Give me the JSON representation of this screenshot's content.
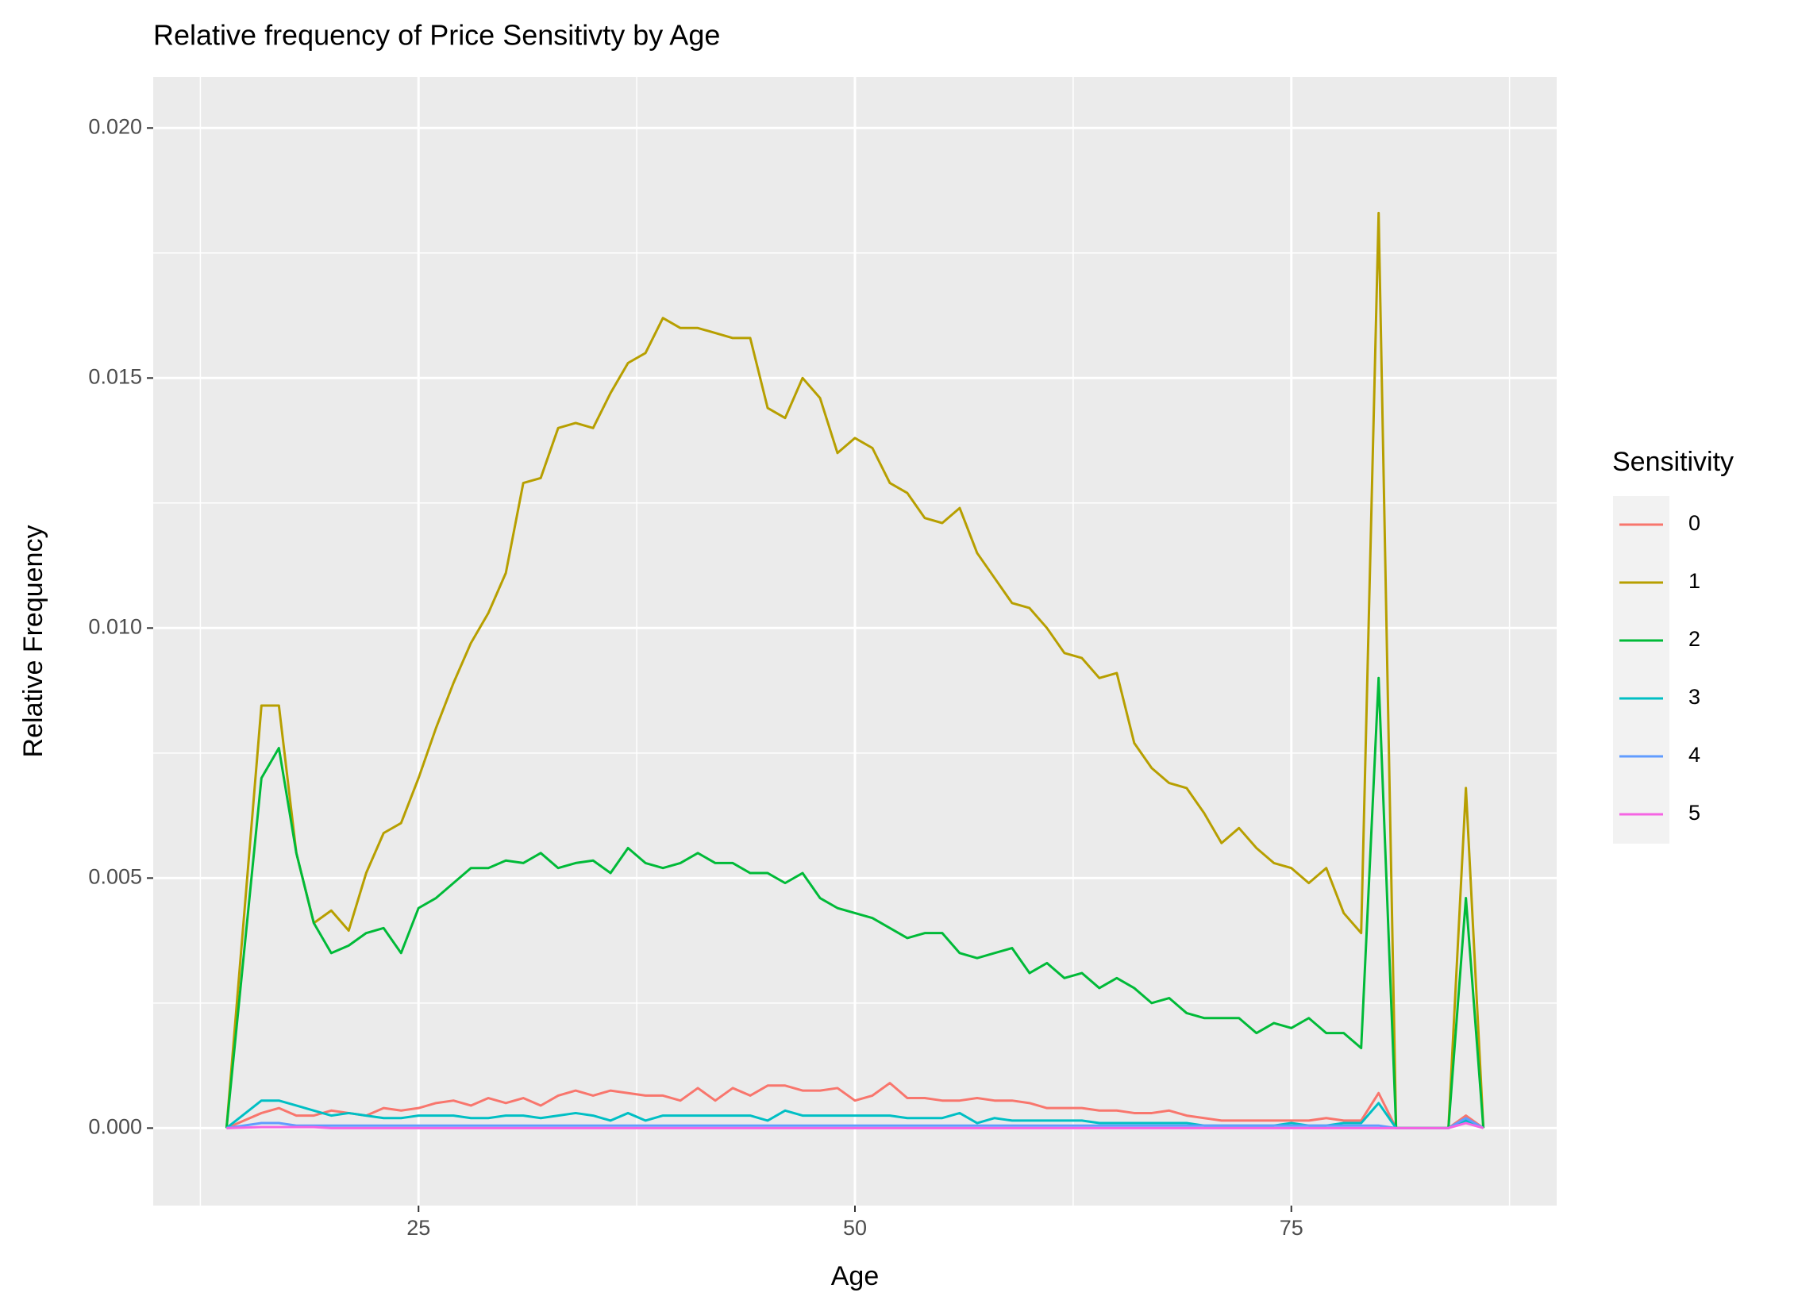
{
  "chart_data": {
    "type": "line",
    "title": "Relative frequency of Price Sensitivty by Age",
    "x_label": "Age",
    "y_label": "Relative Frequency",
    "legend_title": "Sensitivity",
    "x": [
      14,
      16,
      17,
      18,
      19,
      20,
      21,
      22,
      23,
      24,
      25,
      26,
      27,
      28,
      29,
      30,
      31,
      32,
      33,
      34,
      35,
      36,
      37,
      38,
      39,
      40,
      41,
      42,
      43,
      44,
      45,
      46,
      47,
      48,
      49,
      50,
      51,
      52,
      53,
      54,
      55,
      56,
      57,
      58,
      59,
      60,
      61,
      62,
      63,
      64,
      65,
      66,
      67,
      68,
      69,
      70,
      71,
      72,
      73,
      74,
      75,
      76,
      77,
      78,
      79,
      80,
      81,
      82,
      83,
      84,
      85,
      86
    ],
    "series": [
      {
        "name": "0",
        "color": "#F8766D",
        "values": [
          0,
          0.0003,
          0.0004,
          0.00025,
          0.00025,
          0.00035,
          0.0003,
          0.00025,
          0.0004,
          0.00035,
          0.0004,
          0.0005,
          0.00055,
          0.00045,
          0.0006,
          0.0005,
          0.0006,
          0.00045,
          0.00065,
          0.00075,
          0.00065,
          0.00075,
          0.0007,
          0.00065,
          0.00065,
          0.00055,
          0.0008,
          0.00055,
          0.0008,
          0.00065,
          0.00085,
          0.00085,
          0.00075,
          0.00075,
          0.0008,
          0.00055,
          0.00065,
          0.0009,
          0.0006,
          0.0006,
          0.00055,
          0.00055,
          0.0006,
          0.00055,
          0.00055,
          0.0005,
          0.0004,
          0.0004,
          0.0004,
          0.00035,
          0.00035,
          0.0003,
          0.0003,
          0.00035,
          0.00025,
          0.0002,
          0.00015,
          0.00015,
          0.00015,
          0.00015,
          0.00015,
          0.00015,
          0.0002,
          0.00015,
          0.00015,
          0.0007,
          0,
          0,
          0,
          0,
          0.00025,
          0
        ]
      },
      {
        "name": "1",
        "color": "#B79F00",
        "values": [
          0,
          0.00845,
          0.00845,
          0.0055,
          0.0041,
          0.00435,
          0.00395,
          0.0051,
          0.0059,
          0.0061,
          0.007,
          0.008,
          0.0089,
          0.0097,
          0.0103,
          0.0111,
          0.0129,
          0.013,
          0.014,
          0.0141,
          0.014,
          0.0147,
          0.0153,
          0.0155,
          0.0162,
          0.016,
          0.016,
          0.0159,
          0.0158,
          0.0158,
          0.0144,
          0.0142,
          0.015,
          0.0146,
          0.0135,
          0.0138,
          0.0136,
          0.0129,
          0.0127,
          0.0122,
          0.0121,
          0.0124,
          0.0115,
          0.011,
          0.0105,
          0.0104,
          0.01,
          0.0095,
          0.0094,
          0.009,
          0.0091,
          0.0077,
          0.0072,
          0.0069,
          0.0068,
          0.0063,
          0.0057,
          0.006,
          0.0056,
          0.0053,
          0.0052,
          0.0049,
          0.0052,
          0.0043,
          0.0039,
          0.0183,
          0,
          0,
          0,
          0,
          0.0068,
          0
        ]
      },
      {
        "name": "2",
        "color": "#00BA38",
        "values": [
          0,
          0.007,
          0.0076,
          0.0055,
          0.0041,
          0.0035,
          0.00365,
          0.0039,
          0.004,
          0.0035,
          0.0044,
          0.0046,
          0.0049,
          0.0052,
          0.0052,
          0.00535,
          0.0053,
          0.0055,
          0.0052,
          0.0053,
          0.00535,
          0.0051,
          0.0056,
          0.0053,
          0.0052,
          0.0053,
          0.0055,
          0.0053,
          0.0053,
          0.0051,
          0.0051,
          0.0049,
          0.0051,
          0.0046,
          0.0044,
          0.0043,
          0.0042,
          0.004,
          0.0038,
          0.0039,
          0.0039,
          0.0035,
          0.0034,
          0.0035,
          0.0036,
          0.0031,
          0.0033,
          0.003,
          0.0031,
          0.0028,
          0.003,
          0.0028,
          0.0025,
          0.0026,
          0.0023,
          0.0022,
          0.0022,
          0.0022,
          0.0019,
          0.0021,
          0.002,
          0.0022,
          0.0019,
          0.0019,
          0.0016,
          0.009,
          0,
          0,
          0,
          0,
          0.0046,
          0
        ]
      },
      {
        "name": "3",
        "color": "#00BFC4",
        "values": [
          0,
          0.00055,
          0.00055,
          0.00045,
          0.00035,
          0.00025,
          0.0003,
          0.00025,
          0.0002,
          0.0002,
          0.00025,
          0.00025,
          0.00025,
          0.0002,
          0.0002,
          0.00025,
          0.00025,
          0.0002,
          0.00025,
          0.0003,
          0.00025,
          0.00015,
          0.0003,
          0.00015,
          0.00025,
          0.00025,
          0.00025,
          0.00025,
          0.00025,
          0.00025,
          0.00015,
          0.00035,
          0.00025,
          0.00025,
          0.00025,
          0.00025,
          0.00025,
          0.00025,
          0.0002,
          0.0002,
          0.0002,
          0.0003,
          0.0001,
          0.0002,
          0.00015,
          0.00015,
          0.00015,
          0.00015,
          0.00015,
          0.0001,
          0.0001,
          0.0001,
          0.0001,
          0.0001,
          0.0001,
          5e-05,
          5e-05,
          5e-05,
          5e-05,
          5e-05,
          0.0001,
          5e-05,
          5e-05,
          0.0001,
          0.0001,
          0.0005,
          0,
          0,
          0,
          0,
          0.00015,
          0
        ]
      },
      {
        "name": "4",
        "color": "#619CFF",
        "values": [
          0,
          0.0001,
          0.0001,
          5e-05,
          5e-05,
          5e-05,
          5e-05,
          5e-05,
          5e-05,
          5e-05,
          5e-05,
          5e-05,
          5e-05,
          5e-05,
          5e-05,
          5e-05,
          5e-05,
          5e-05,
          5e-05,
          5e-05,
          5e-05,
          5e-05,
          5e-05,
          5e-05,
          5e-05,
          5e-05,
          5e-05,
          5e-05,
          5e-05,
          5e-05,
          5e-05,
          5e-05,
          5e-05,
          5e-05,
          5e-05,
          5e-05,
          5e-05,
          5e-05,
          5e-05,
          5e-05,
          5e-05,
          5e-05,
          5e-05,
          5e-05,
          5e-05,
          5e-05,
          5e-05,
          5e-05,
          5e-05,
          5e-05,
          5e-05,
          5e-05,
          5e-05,
          5e-05,
          5e-05,
          5e-05,
          5e-05,
          5e-05,
          5e-05,
          5e-05,
          5e-05,
          5e-05,
          5e-05,
          5e-05,
          5e-05,
          5e-05,
          0,
          0,
          0,
          0,
          0.0002,
          0
        ]
      },
      {
        "name": "5",
        "color": "#F564E3",
        "values": [
          0,
          2e-05,
          2e-05,
          2e-05,
          2e-05,
          0,
          0,
          0,
          0,
          0,
          0,
          0,
          0,
          0,
          0,
          0,
          0,
          0,
          0,
          0,
          0,
          0,
          0,
          0,
          0,
          0,
          0,
          0,
          0,
          0,
          0,
          0,
          0,
          0,
          0,
          0,
          0,
          0,
          0,
          0,
          0,
          0,
          0,
          0,
          0,
          0,
          0,
          0,
          0,
          0,
          0,
          0,
          0,
          0,
          0,
          0,
          0,
          0,
          0,
          0,
          0,
          0,
          0,
          0,
          0,
          0,
          0,
          0,
          0,
          0,
          0.0001,
          0
        ]
      }
    ],
    "xlim": [
      9.8,
      90.2
    ],
    "ylim": [
      -0.00155,
      0.02102
    ],
    "xticks": [
      25,
      50,
      75
    ],
    "yticks": [
      {
        "value": 0,
        "label": "0.000"
      },
      {
        "value": 0.005,
        "label": "0.005"
      },
      {
        "value": 0.01,
        "label": "0.010"
      },
      {
        "value": 0.015,
        "label": "0.015"
      },
      {
        "value": 0.02,
        "label": "0.020"
      }
    ],
    "grid": true,
    "legend_position": "right"
  }
}
